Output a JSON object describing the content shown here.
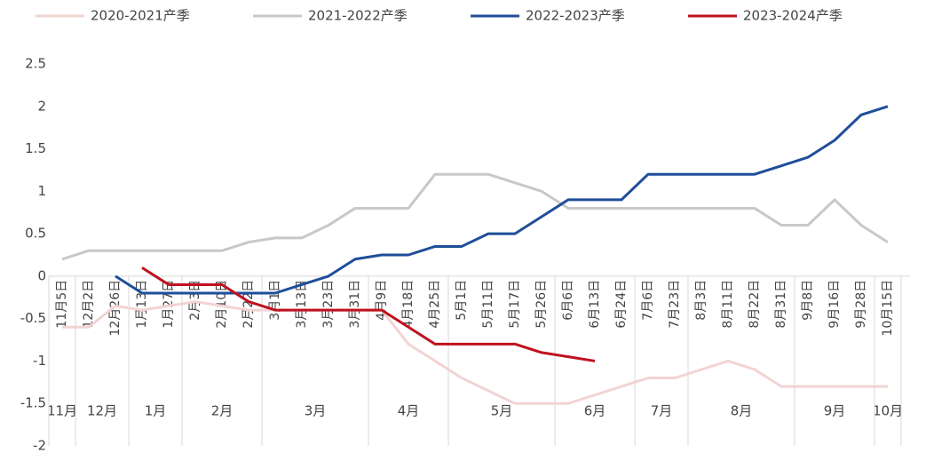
{
  "chart_data": {
    "type": "line",
    "categories": [
      "11月5日",
      "12月2日",
      "12月26日",
      "1月13日",
      "1月27日",
      "2月3日",
      "2月10日",
      "2月22日",
      "3月1日",
      "3月13日",
      "3月23日",
      "3月31日",
      "4月9日",
      "4月18日",
      "4月25日",
      "5月1日",
      "5月11日",
      "5月17日",
      "5月26日",
      "6月6日",
      "6月13日",
      "6月24日",
      "7月6日",
      "7月23日",
      "8月3日",
      "8月11日",
      "8月22日",
      "8月31日",
      "9月8日",
      "9月16日",
      "9月28日",
      "10月15日"
    ],
    "month_labels": [
      "11月",
      "12月",
      "1月",
      "2月",
      "3月",
      "4月",
      "5月",
      "6月",
      "7月",
      "8月",
      "9月",
      "10月"
    ],
    "series": [
      {
        "name": "2020-2021产季",
        "color": "#f2d4d2",
        "values": [
          -0.6,
          -0.6,
          -0.35,
          -0.4,
          -0.35,
          -0.3,
          -0.35,
          -0.4,
          -0.4,
          -0.4,
          -0.4,
          -0.4,
          -0.4,
          -0.8,
          -1.0,
          -1.2,
          -1.35,
          -1.5,
          -1.5,
          -1.5,
          -1.4,
          -1.3,
          -1.2,
          -1.2,
          -1.1,
          -1.0,
          -1.1,
          -1.3,
          -1.3,
          -1.3,
          -1.3,
          -1.3
        ]
      },
      {
        "name": "2021-2022产季",
        "color": "#c8c8c8",
        "values": [
          0.2,
          0.3,
          0.3,
          0.3,
          0.3,
          0.3,
          0.3,
          0.4,
          0.45,
          0.45,
          0.6,
          0.8,
          0.8,
          0.8,
          1.2,
          1.2,
          1.2,
          1.1,
          1.0,
          0.8,
          0.8,
          0.8,
          0.8,
          0.8,
          0.8,
          0.8,
          0.8,
          0.6,
          0.6,
          0.9,
          0.6,
          0.4
        ]
      },
      {
        "name": "2022-2023产季",
        "color": "#1f4e9a",
        "values": [
          null,
          null,
          0,
          -0.2,
          -0.2,
          -0.2,
          -0.2,
          -0.2,
          -0.2,
          -0.1,
          0,
          0.2,
          0.25,
          0.25,
          0.35,
          0.35,
          0.5,
          0.5,
          0.7,
          0.9,
          0.9,
          0.9,
          1.2,
          1.2,
          1.2,
          1.2,
          1.2,
          1.3,
          1.4,
          1.6,
          1.9,
          2.0
        ]
      },
      {
        "name": "2023-2024产季",
        "color": "#c0111f",
        "values": [
          null,
          null,
          null,
          0.1,
          -0.1,
          -0.1,
          -0.1,
          -0.3,
          -0.4,
          -0.4,
          -0.4,
          -0.4,
          -0.4,
          -0.6,
          -0.8,
          -0.8,
          -0.8,
          -0.8,
          -0.9,
          -0.95,
          -1.0,
          null,
          null,
          null,
          null,
          null,
          null,
          null,
          null,
          null,
          null,
          null
        ]
      }
    ],
    "ylim": [
      -2,
      2.5
    ],
    "yticks": [
      2.5,
      2,
      1.5,
      1,
      0.5,
      0,
      -0.5,
      -1,
      -1.5,
      -2
    ],
    "grid": false
  }
}
